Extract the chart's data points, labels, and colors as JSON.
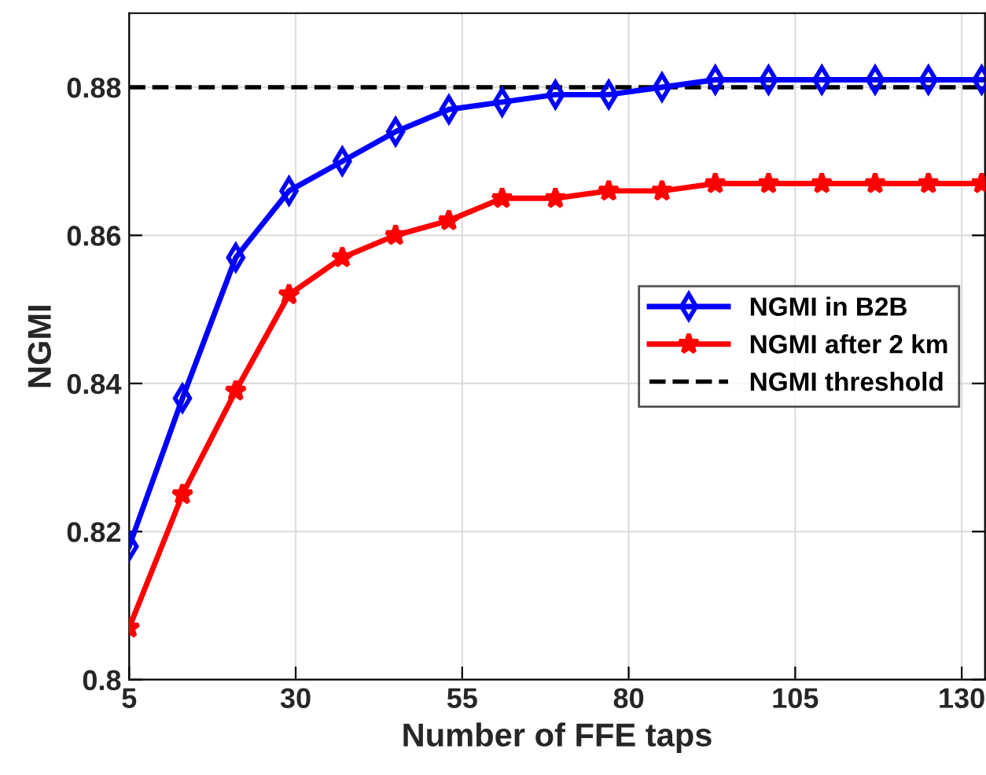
{
  "chart_data": {
    "type": "line",
    "xlabel": "Number of FFE taps",
    "ylabel": "NGMI",
    "x": [
      5,
      13,
      21,
      29,
      37,
      45,
      53,
      61,
      69,
      77,
      85,
      93,
      101,
      109,
      117,
      125,
      133
    ],
    "series": [
      {
        "name": "NGMI in B2B",
        "color": "#0000ff",
        "marker": "diamond",
        "values": [
          0.818,
          0.838,
          0.857,
          0.866,
          0.87,
          0.874,
          0.877,
          0.878,
          0.879,
          0.879,
          0.88,
          0.881,
          0.881,
          0.881,
          0.881,
          0.881,
          0.881
        ]
      },
      {
        "name": "NGMI after 2 km",
        "color": "#ff0000",
        "marker": "star",
        "values": [
          0.807,
          0.825,
          0.839,
          0.852,
          0.857,
          0.86,
          0.862,
          0.865,
          0.865,
          0.866,
          0.866,
          0.867,
          0.867,
          0.867,
          0.867,
          0.867,
          0.867
        ]
      }
    ],
    "ref_lines": [
      {
        "axis": "y",
        "value": 0.88,
        "label": "NGMI threshold",
        "color": "#000000",
        "line_style": "dashed"
      }
    ],
    "xlim": [
      5,
      133.5
    ],
    "ylim": [
      0.8,
      0.89
    ],
    "xticks": [
      5,
      30,
      55,
      80,
      105,
      130
    ],
    "yticks": [
      {
        "value": 0.8,
        "label": "0.8"
      },
      0.82,
      0.84,
      0.86,
      0.88
    ],
    "grid": true,
    "legend": "right",
    "line_style": "solid"
  }
}
